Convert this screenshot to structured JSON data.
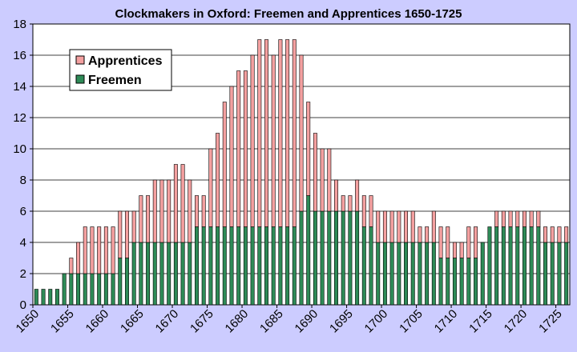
{
  "chart_data": {
    "type": "bar",
    "stacked": true,
    "title": "Clockmakers in Oxford: Freemen and Apprentices 1650-1725",
    "xlabel": "",
    "ylabel": "",
    "ylim": [
      0,
      18
    ],
    "y_ticks": [
      0,
      2,
      4,
      6,
      8,
      10,
      12,
      14,
      16,
      18
    ],
    "x": [
      1650,
      1651,
      1652,
      1653,
      1654,
      1655,
      1656,
      1657,
      1658,
      1659,
      1660,
      1661,
      1662,
      1663,
      1664,
      1665,
      1666,
      1667,
      1668,
      1669,
      1670,
      1671,
      1672,
      1673,
      1674,
      1675,
      1676,
      1677,
      1678,
      1679,
      1680,
      1681,
      1682,
      1683,
      1684,
      1685,
      1686,
      1687,
      1688,
      1689,
      1690,
      1691,
      1692,
      1693,
      1694,
      1695,
      1696,
      1697,
      1698,
      1699,
      1700,
      1701,
      1702,
      1703,
      1704,
      1705,
      1706,
      1707,
      1708,
      1709,
      1710,
      1711,
      1712,
      1713,
      1714,
      1715,
      1716,
      1717,
      1718,
      1719,
      1720,
      1721,
      1722,
      1723,
      1724,
      1725,
      1726
    ],
    "x_tick_labels": [
      "1650",
      "1655",
      "1660",
      "1665",
      "1670",
      "1675",
      "1680",
      "1685",
      "1690",
      "1695",
      "1700",
      "1705",
      "1710",
      "1715",
      "1720",
      "1725"
    ],
    "grid": "horizontal",
    "legend_position": "top-left",
    "series": [
      {
        "name": "Freemen",
        "color": "#2e8b57",
        "values": [
          1,
          1,
          1,
          1,
          2,
          2,
          2,
          2,
          2,
          2,
          2,
          2,
          3,
          3,
          4,
          4,
          4,
          4,
          4,
          4,
          4,
          4,
          4,
          5,
          5,
          5,
          5,
          5,
          5,
          5,
          5,
          5,
          5,
          5,
          5,
          5,
          5,
          5,
          6,
          7,
          6,
          6,
          6,
          6,
          6,
          6,
          6,
          5,
          5,
          4,
          4,
          4,
          4,
          4,
          4,
          4,
          4,
          4,
          3,
          3,
          3,
          3,
          3,
          3,
          4,
          5,
          5,
          5,
          5,
          5,
          5,
          5,
          5,
          4,
          4,
          4,
          4
        ]
      },
      {
        "name": "Apprentices",
        "color": "#f4a0a0",
        "values": [
          0,
          0,
          0,
          0,
          0,
          1,
          2,
          3,
          3,
          3,
          3,
          3,
          3,
          3,
          2,
          3,
          3,
          4,
          4,
          4,
          5,
          5,
          4,
          2,
          2,
          5,
          6,
          8,
          9,
          10,
          10,
          11,
          12,
          12,
          11,
          12,
          12,
          12,
          10,
          6,
          5,
          4,
          4,
          2,
          1,
          1,
          2,
          2,
          2,
          2,
          2,
          2,
          2,
          2,
          2,
          1,
          1,
          2,
          2,
          2,
          1,
          1,
          2,
          2,
          0,
          0,
          1,
          1,
          1,
          1,
          1,
          1,
          1,
          1,
          1,
          1,
          1
        ]
      }
    ],
    "colors": {
      "background": "#ccccff",
      "plot_background": "#ffffff",
      "gridline": "#000000",
      "axis": "#000000"
    }
  }
}
